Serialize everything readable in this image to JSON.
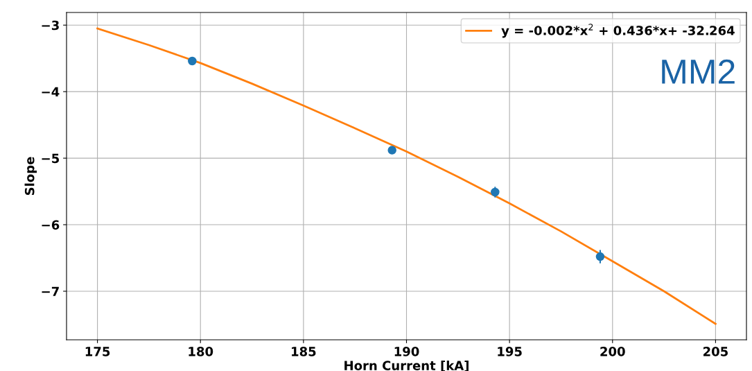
{
  "chart_data": {
    "type": "scatter",
    "xlabel": "Horn Current [kA]",
    "ylabel": "Slope",
    "xlim": [
      173.5,
      206.5
    ],
    "xticks": [
      175,
      180,
      185,
      190,
      195,
      200,
      205
    ],
    "ylim": [
      -7.73,
      -2.81
    ],
    "yticks": [
      {
        "value": -3,
        "label": "−3"
      },
      {
        "value": -4,
        "label": "−4"
      },
      {
        "value": -5,
        "label": "−5"
      },
      {
        "value": -6,
        "label": "−6"
      },
      {
        "value": -7,
        "label": "−7"
      }
    ],
    "grid": true,
    "legend": "top right",
    "annotations": [
      "MM2"
    ],
    "series": [
      {
        "color": "#1f77b4",
        "marker": "circle",
        "x": [
          179.6,
          189.3,
          194.3,
          199.4
        ],
        "values": [
          -3.54,
          -4.88,
          -5.51,
          -6.48
        ],
        "errors": [
          0.05,
          0.03,
          0.08,
          0.1
        ]
      },
      {
        "type": "line",
        "name": "y = -0.002*x$^{2}$ + 0.436*x+ -32.264",
        "color": "#ff7f0e",
        "x": [
          175,
          177.5,
          180,
          182.5,
          185,
          187.5,
          190,
          192.5,
          195,
          197.5,
          200,
          202.5,
          205
        ],
        "values": [
          -3.05,
          -3.3,
          -3.57,
          -3.88,
          -4.21,
          -4.55,
          -4.9,
          -5.28,
          -5.68,
          -6.1,
          -6.55,
          -7.0,
          -7.49
        ]
      }
    ]
  }
}
